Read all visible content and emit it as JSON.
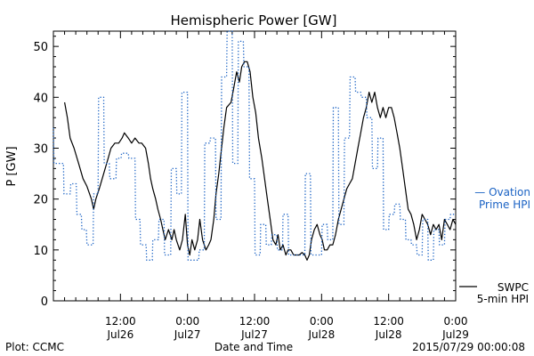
{
  "chart_data": {
    "type": "line",
    "title": "Hemispheric Power [GW]",
    "ylabel": "P [GW]",
    "xlabel": "Date and Time",
    "ylim": [
      0,
      53
    ],
    "yticks": [
      0,
      10,
      20,
      30,
      40,
      50
    ],
    "xrange_hours": [
      0,
      72
    ],
    "x_ticks": [
      {
        "hour": 12,
        "time": "12:00",
        "date": "Jul26"
      },
      {
        "hour": 24,
        "time": "0:00",
        "date": "Jul27"
      },
      {
        "hour": 36,
        "time": "12:00",
        "date": "Jul27"
      },
      {
        "hour": 48,
        "time": "0:00",
        "date": "Jul28"
      },
      {
        "hour": 60,
        "time": "12:00",
        "date": "Jul28"
      },
      {
        "hour": 72,
        "time": "0:00",
        "date": "Jul29"
      }
    ],
    "x_units": "hours since 2015-07-26 00:00 (Jul26 0:00 is not labeled on the chart)",
    "series": [
      {
        "name": "SWPC 5-min HPI",
        "style": "solid",
        "color": "#000000",
        "points": [
          [
            2.0,
            39
          ],
          [
            2.5,
            36
          ],
          [
            3.0,
            32
          ],
          [
            3.7,
            30
          ],
          [
            4.5,
            27
          ],
          [
            5.3,
            24
          ],
          [
            6.0,
            22.5
          ],
          [
            6.8,
            20
          ],
          [
            7.2,
            18
          ],
          [
            7.6,
            20
          ],
          [
            8.2,
            22
          ],
          [
            9.0,
            25
          ],
          [
            9.8,
            28
          ],
          [
            10.3,
            30
          ],
          [
            11.0,
            31
          ],
          [
            11.7,
            31
          ],
          [
            12.3,
            32
          ],
          [
            12.7,
            33
          ],
          [
            13.4,
            32
          ],
          [
            14.0,
            31
          ],
          [
            14.6,
            32
          ],
          [
            15.3,
            31
          ],
          [
            15.8,
            31
          ],
          [
            16.5,
            30
          ],
          [
            17.0,
            27
          ],
          [
            17.4,
            24
          ],
          [
            17.8,
            22
          ],
          [
            18.3,
            20
          ],
          [
            18.7,
            18
          ],
          [
            19.2,
            16
          ],
          [
            19.6,
            14
          ],
          [
            20.0,
            12
          ],
          [
            20.6,
            14
          ],
          [
            21.2,
            12
          ],
          [
            21.6,
            14
          ],
          [
            22.0,
            12
          ],
          [
            22.6,
            10
          ],
          [
            23.1,
            12
          ],
          [
            23.6,
            17
          ],
          [
            24.0,
            11
          ],
          [
            24.4,
            9
          ],
          [
            24.8,
            12
          ],
          [
            25.3,
            10
          ],
          [
            25.8,
            12
          ],
          [
            26.2,
            16
          ],
          [
            26.7,
            12
          ],
          [
            27.3,
            10
          ],
          [
            27.8,
            11
          ],
          [
            28.2,
            12
          ],
          [
            28.7,
            16
          ],
          [
            29.1,
            21
          ],
          [
            29.6,
            25
          ],
          [
            30.0,
            29
          ],
          [
            30.5,
            34
          ],
          [
            31.0,
            38
          ],
          [
            31.4,
            38.5
          ],
          [
            31.8,
            39
          ],
          [
            32.3,
            42
          ],
          [
            32.8,
            45
          ],
          [
            33.3,
            43
          ],
          [
            33.7,
            46
          ],
          [
            34.2,
            47
          ],
          [
            34.7,
            47
          ],
          [
            35.2,
            45
          ],
          [
            35.7,
            40
          ],
          [
            36.2,
            37
          ],
          [
            36.7,
            32
          ],
          [
            37.3,
            28
          ],
          [
            37.8,
            24
          ],
          [
            38.3,
            20
          ],
          [
            38.8,
            16
          ],
          [
            39.3,
            12
          ],
          [
            39.8,
            11
          ],
          [
            40.2,
            13
          ],
          [
            40.6,
            10
          ],
          [
            41.1,
            11
          ],
          [
            41.6,
            9
          ],
          [
            42.0,
            10
          ],
          [
            42.5,
            10
          ],
          [
            43.0,
            9
          ],
          [
            43.5,
            9
          ],
          [
            44.0,
            9
          ],
          [
            44.5,
            9.5
          ],
          [
            45.0,
            9
          ],
          [
            45.4,
            8
          ],
          [
            45.8,
            9
          ],
          [
            46.2,
            12
          ],
          [
            46.7,
            14
          ],
          [
            47.2,
            15
          ],
          [
            47.7,
            13
          ],
          [
            48.1,
            12
          ],
          [
            48.5,
            10
          ],
          [
            49.0,
            10
          ],
          [
            49.5,
            11
          ],
          [
            50.0,
            11
          ],
          [
            50.5,
            13
          ],
          [
            51.0,
            16
          ],
          [
            51.5,
            18
          ],
          [
            52.0,
            20
          ],
          [
            52.5,
            22
          ],
          [
            53.0,
            23
          ],
          [
            53.5,
            24
          ],
          [
            54.0,
            27
          ],
          [
            54.5,
            30
          ],
          [
            55.0,
            33
          ],
          [
            55.5,
            36
          ],
          [
            56.0,
            38
          ],
          [
            56.5,
            41
          ],
          [
            57.0,
            39
          ],
          [
            57.5,
            41
          ],
          [
            58.0,
            38
          ],
          [
            58.5,
            36
          ],
          [
            59.0,
            38
          ],
          [
            59.5,
            36
          ],
          [
            60.0,
            38
          ],
          [
            60.5,
            38
          ],
          [
            61.0,
            36
          ],
          [
            61.5,
            33
          ],
          [
            62.0,
            30
          ],
          [
            62.5,
            26
          ],
          [
            63.0,
            22
          ],
          [
            63.5,
            18
          ],
          [
            64.0,
            17
          ],
          [
            64.5,
            15
          ],
          [
            65.0,
            12
          ],
          [
            65.5,
            14
          ],
          [
            66.0,
            17
          ],
          [
            66.5,
            16
          ],
          [
            67.0,
            15
          ],
          [
            67.5,
            13
          ],
          [
            68.0,
            15
          ],
          [
            68.5,
            14
          ],
          [
            69.0,
            15
          ],
          [
            69.5,
            12
          ],
          [
            70.0,
            16
          ],
          [
            70.5,
            15
          ],
          [
            71.0,
            14
          ],
          [
            71.5,
            16
          ],
          [
            72.0,
            15
          ]
        ]
      },
      {
        "name": "Ovation Prime HPI",
        "style": "dotted",
        "color": "#1a62c4",
        "points": [
          [
            0.0,
            34
          ],
          [
            0.1,
            27
          ],
          [
            1.8,
            27
          ],
          [
            1.9,
            21
          ],
          [
            3.0,
            21
          ],
          [
            3.1,
            23
          ],
          [
            4.1,
            23
          ],
          [
            4.2,
            17
          ],
          [
            5.0,
            17
          ],
          [
            5.1,
            14
          ],
          [
            5.9,
            14
          ],
          [
            6.0,
            11
          ],
          [
            7.1,
            11
          ],
          [
            7.2,
            21
          ],
          [
            8.0,
            21
          ],
          [
            8.1,
            40
          ],
          [
            9.0,
            40
          ],
          [
            9.1,
            27
          ],
          [
            10.0,
            27
          ],
          [
            10.1,
            24
          ],
          [
            11.2,
            24
          ],
          [
            11.3,
            28
          ],
          [
            12.1,
            28
          ],
          [
            12.2,
            29
          ],
          [
            13.4,
            29
          ],
          [
            13.5,
            28
          ],
          [
            14.6,
            28
          ],
          [
            14.7,
            16
          ],
          [
            15.5,
            16
          ],
          [
            15.6,
            11
          ],
          [
            16.6,
            11
          ],
          [
            16.7,
            8
          ],
          [
            17.7,
            8
          ],
          [
            17.8,
            12
          ],
          [
            18.8,
            12
          ],
          [
            18.9,
            16
          ],
          [
            19.8,
            16
          ],
          [
            19.9,
            9
          ],
          [
            21.0,
            9
          ],
          [
            21.1,
            26
          ],
          [
            22.0,
            26
          ],
          [
            22.1,
            21
          ],
          [
            22.9,
            21
          ],
          [
            23.0,
            41
          ],
          [
            24.0,
            41
          ],
          [
            24.1,
            8
          ],
          [
            26.0,
            8
          ],
          [
            26.1,
            10
          ],
          [
            27.0,
            10
          ],
          [
            27.1,
            31
          ],
          [
            28.0,
            31
          ],
          [
            28.1,
            32
          ],
          [
            29.0,
            32
          ],
          [
            29.1,
            16
          ],
          [
            30.0,
            16
          ],
          [
            30.1,
            44
          ],
          [
            31.0,
            44
          ],
          [
            31.1,
            53
          ],
          [
            32.0,
            53
          ],
          [
            32.1,
            27
          ],
          [
            33.0,
            27
          ],
          [
            33.1,
            51
          ],
          [
            34.0,
            51
          ],
          [
            34.1,
            46
          ],
          [
            35.0,
            46
          ],
          [
            35.1,
            24
          ],
          [
            36.0,
            24
          ],
          [
            36.1,
            9
          ],
          [
            37.0,
            9
          ],
          [
            37.1,
            15
          ],
          [
            38.0,
            15
          ],
          [
            38.1,
            11
          ],
          [
            39.0,
            11
          ],
          [
            39.1,
            13
          ],
          [
            40.0,
            13
          ],
          [
            40.1,
            10
          ],
          [
            41.0,
            10
          ],
          [
            41.1,
            17
          ],
          [
            42.0,
            17
          ],
          [
            42.1,
            9
          ],
          [
            45.0,
            9
          ],
          [
            45.1,
            25
          ],
          [
            46.0,
            25
          ],
          [
            46.1,
            9
          ],
          [
            48.0,
            9
          ],
          [
            48.1,
            15
          ],
          [
            49.0,
            15
          ],
          [
            49.1,
            12
          ],
          [
            50.0,
            12
          ],
          [
            50.1,
            38
          ],
          [
            51.0,
            38
          ],
          [
            51.1,
            15
          ],
          [
            52.0,
            15
          ],
          [
            52.1,
            32
          ],
          [
            53.0,
            32
          ],
          [
            53.1,
            44
          ],
          [
            54.0,
            44
          ],
          [
            54.1,
            41
          ],
          [
            55.0,
            41
          ],
          [
            55.1,
            40
          ],
          [
            56.0,
            40
          ],
          [
            56.1,
            36
          ],
          [
            57.0,
            36
          ],
          [
            57.1,
            26
          ],
          [
            58.0,
            26
          ],
          [
            58.1,
            32
          ],
          [
            59.0,
            32
          ],
          [
            59.1,
            14
          ],
          [
            60.0,
            14
          ],
          [
            60.1,
            17
          ],
          [
            61.0,
            17
          ],
          [
            61.1,
            19
          ],
          [
            62.0,
            19
          ],
          [
            62.1,
            16
          ],
          [
            63.0,
            16
          ],
          [
            63.1,
            12
          ],
          [
            64.0,
            12
          ],
          [
            64.1,
            11
          ],
          [
            65.0,
            11
          ],
          [
            65.1,
            9
          ],
          [
            66.0,
            9
          ],
          [
            66.1,
            16
          ],
          [
            67.0,
            16
          ],
          [
            67.1,
            8
          ],
          [
            68.0,
            8
          ],
          [
            68.1,
            14
          ],
          [
            69.0,
            14
          ],
          [
            69.1,
            11
          ],
          [
            70.0,
            11
          ],
          [
            70.1,
            16
          ],
          [
            71.0,
            16
          ],
          [
            71.1,
            17
          ],
          [
            72.0,
            17
          ]
        ]
      }
    ],
    "legend_placement": "right",
    "legend": {
      "ovation_line1": "— Ovation",
      "ovation_line2": "Prime HPI",
      "swpc_line1": "SWPC",
      "swpc_line2": "5-min HPI"
    }
  },
  "footer": {
    "plot_credit": "Plot: CCMC",
    "timestamp": "2015/07/29 00:00:08"
  },
  "colors": {
    "ovation": "#1a62c4",
    "swpc": "#000000",
    "axes": "#000000"
  }
}
